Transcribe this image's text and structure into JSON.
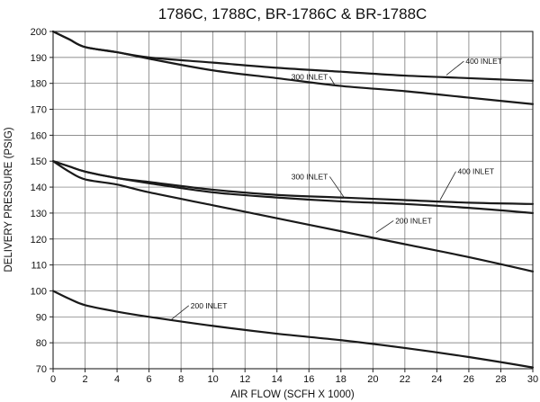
{
  "chart_data": {
    "type": "line",
    "title": "1786C, 1788C, BR-1786C & BR-1788C",
    "xlabel": "AIR FLOW (SCFH X 1000)",
    "ylabel": "DELIVERY PRESSURE (PSIG)",
    "xlim": [
      0,
      30
    ],
    "ylim": [
      70,
      200
    ],
    "xticks": [
      0,
      2,
      4,
      6,
      8,
      10,
      12,
      14,
      16,
      18,
      20,
      22,
      24,
      26,
      28,
      30
    ],
    "yticks": [
      70,
      80,
      90,
      100,
      110,
      120,
      130,
      140,
      150,
      160,
      170,
      180,
      190,
      200
    ],
    "grid": true,
    "series": [
      {
        "name": "400 INLET",
        "x": [
          0,
          1,
          2,
          4,
          6,
          10,
          14,
          18,
          22,
          26,
          30
        ],
        "y": [
          200,
          197,
          194,
          192,
          190,
          188,
          186,
          184.5,
          183,
          182,
          181
        ]
      },
      {
        "name": "300 INLET",
        "x": [
          0,
          1,
          2,
          4,
          6,
          10,
          14,
          18,
          22,
          26,
          30
        ],
        "y": [
          200,
          197,
          194,
          192,
          189.5,
          185,
          182,
          179,
          177,
          174.5,
          172
        ]
      },
      {
        "name": "400 INLET",
        "x": [
          0,
          1,
          2,
          4,
          6,
          10,
          14,
          18,
          22,
          26,
          30
        ],
        "y": [
          150,
          148,
          146,
          143.5,
          142,
          139,
          137,
          136,
          135,
          134,
          133.5
        ]
      },
      {
        "name": "300 INLET",
        "x": [
          0,
          1,
          2,
          4,
          6,
          10,
          14,
          18,
          22,
          26,
          30
        ],
        "y": [
          150,
          148,
          146,
          143.5,
          141.5,
          138,
          136,
          134.5,
          133.5,
          132,
          130
        ]
      },
      {
        "name": "200 INLET",
        "x": [
          0,
          1,
          2,
          4,
          6,
          10,
          14,
          18,
          22,
          26,
          30
        ],
        "y": [
          150,
          146,
          143,
          141,
          138,
          133,
          128,
          123,
          118,
          113,
          107.5
        ]
      },
      {
        "name": "200 INLET",
        "x": [
          0,
          1,
          2,
          4,
          6,
          10,
          14,
          18,
          22,
          26,
          30
        ],
        "y": [
          100,
          97,
          94.5,
          92,
          90,
          86.5,
          83.5,
          81,
          78,
          74.5,
          70.5
        ]
      }
    ],
    "annotations": [
      {
        "text": "400 INLET",
        "x": 25.8,
        "y": 187.5,
        "point": [
          24.6,
          183.2
        ]
      },
      {
        "text": "300 INLET",
        "x": 14.9,
        "y": 181.5,
        "point": [
          17.6,
          179.5
        ]
      },
      {
        "text": "300 INLET",
        "x": 14.9,
        "y": 143,
        "point": [
          18.2,
          136
        ]
      },
      {
        "text": "400 INLET",
        "x": 25.3,
        "y": 145,
        "point": [
          24.2,
          135
        ]
      },
      {
        "text": "200 INLET",
        "x": 21.4,
        "y": 126,
        "point": [
          20.2,
          122.5
        ]
      },
      {
        "text": "200 INLET",
        "x": 8.6,
        "y": 93.3,
        "point": [
          7.3,
          88.5
        ]
      }
    ]
  }
}
